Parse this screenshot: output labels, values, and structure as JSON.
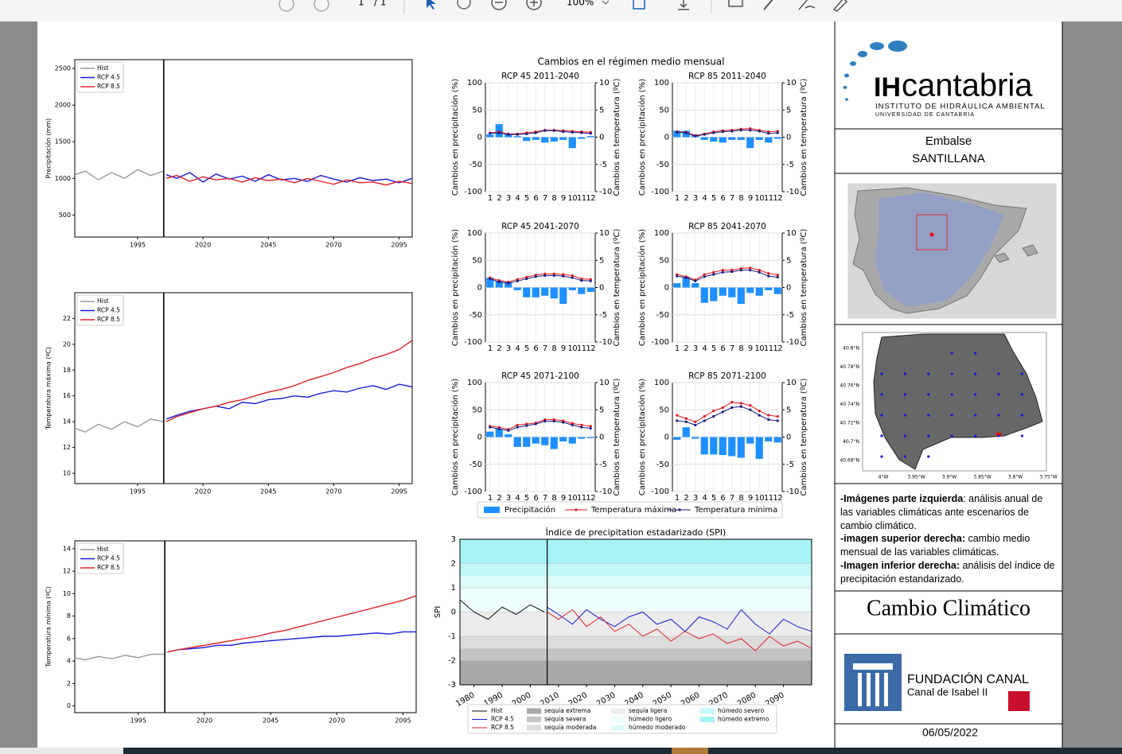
{
  "toolbar": {
    "page": "1",
    "pages": "/ 1",
    "zoom": "100%"
  },
  "sidebar": {
    "logo_main": "IH",
    "logo_name": "cantabria",
    "logo_sub1": "INSTITUTO DE HIDRÁULICA AMBIENTAL",
    "logo_sub2": "UNIVERSIDAD DE CANTABRIA",
    "reservoir_label": "Embalse",
    "reservoir_name": "SANTILLANA",
    "map_lat_labels": [
      "40.8°N",
      "40.78°N",
      "40.76°N",
      "40.74°N",
      "40.72°N",
      "40.7°N",
      "40.68°N"
    ],
    "map_lon_labels": [
      "4°W",
      "3.95°W",
      "3.9°W",
      "3.85°W",
      "3.8°W",
      "3.75°W"
    ],
    "description": [
      {
        "label": "-Imágenes parte izquierda",
        "text": ": análisis anual de las variables climáticas ante escenarios de cambio climático."
      },
      {
        "label": "-imagen superior derecha:",
        "text": " cambio medio mensual de las variables climáticas."
      },
      {
        "label": "-Imagen inferior derecha:",
        "text": " análisis del índice de precipitación estandarizado."
      }
    ],
    "heading": "Cambio Climático",
    "foundation": "FUNDACIÓN CANAL",
    "foundation_sub": "Canal de Isabel II",
    "date": "06/05/2022"
  },
  "chart_data": [
    {
      "type": "line",
      "ylabel": "Precipitación (mm)",
      "x": [
        1971,
        1975,
        1980,
        1985,
        1990,
        1995,
        2000,
        2005,
        2006,
        2010,
        2015,
        2020,
        2025,
        2030,
        2035,
        2040,
        2045,
        2050,
        2055,
        2060,
        2065,
        2070,
        2075,
        2080,
        2085,
        2090,
        2095,
        2100
      ],
      "xlim": [
        1971,
        2100
      ],
      "xticks": [
        1995,
        2020,
        2045,
        2070,
        2095
      ],
      "ylim": [
        200,
        2620
      ],
      "yticks": [
        500,
        1000,
        1500,
        2000,
        2500
      ],
      "vline": 2005,
      "series": [
        {
          "name": "Hist",
          "color": "#999999",
          "values": [
            1050,
            1100,
            980,
            1080,
            1000,
            1120,
            1040,
            1100,
            null,
            null,
            null,
            null,
            null,
            null,
            null,
            null,
            null,
            null,
            null,
            null,
            null,
            null,
            null,
            null,
            null,
            null,
            null,
            null
          ]
        },
        {
          "name": "RCP 4.5",
          "color": "#1a1ad6",
          "values": [
            null,
            null,
            null,
            null,
            null,
            null,
            null,
            null,
            1050,
            1000,
            1080,
            950,
            1060,
            990,
            1030,
            960,
            1050,
            980,
            1000,
            960,
            1040,
            990,
            950,
            1010,
            970,
            990,
            940,
            1000
          ]
        },
        {
          "name": "RCP 8.5",
          "color": "#e3202a",
          "values": [
            null,
            null,
            null,
            null,
            null,
            null,
            null,
            null,
            1000,
            1040,
            960,
            1020,
            980,
            1000,
            950,
            1010,
            970,
            990,
            940,
            1000,
            960,
            920,
            980,
            940,
            950,
            910,
            960,
            930
          ]
        }
      ]
    },
    {
      "type": "line",
      "ylabel": "Temperatura máxima (ºC)",
      "x": [
        1971,
        1975,
        1980,
        1985,
        1990,
        1995,
        2000,
        2005,
        2006,
        2010,
        2015,
        2020,
        2025,
        2030,
        2035,
        2040,
        2045,
        2050,
        2055,
        2060,
        2065,
        2070,
        2075,
        2080,
        2085,
        2090,
        2095,
        2100
      ],
      "xlim": [
        1971,
        2100
      ],
      "xticks": [
        1995,
        2020,
        2045,
        2070,
        2095
      ],
      "ylim": [
        9.2,
        24
      ],
      "yticks": [
        10,
        12,
        14,
        16,
        18,
        20,
        22
      ],
      "vline": 2005,
      "series": [
        {
          "name": "Hist",
          "color": "#999999",
          "values": [
            13.5,
            13.2,
            13.8,
            13.4,
            14.0,
            13.6,
            14.2,
            14.0,
            null,
            null,
            null,
            null,
            null,
            null,
            null,
            null,
            null,
            null,
            null,
            null,
            null,
            null,
            null,
            null,
            null,
            null,
            null,
            null
          ]
        },
        {
          "name": "RCP 4.5",
          "color": "#1a1ad6",
          "values": [
            null,
            null,
            null,
            null,
            null,
            null,
            null,
            null,
            14.2,
            14.5,
            14.8,
            15.0,
            15.2,
            15.0,
            15.5,
            15.4,
            15.7,
            15.8,
            16.0,
            15.9,
            16.2,
            16.4,
            16.3,
            16.6,
            16.8,
            16.5,
            16.9,
            16.7
          ]
        },
        {
          "name": "RCP 8.5",
          "color": "#e3202a",
          "values": [
            null,
            null,
            null,
            null,
            null,
            null,
            null,
            null,
            14.0,
            14.4,
            14.7,
            15.0,
            15.2,
            15.5,
            15.7,
            16.0,
            16.3,
            16.5,
            16.8,
            17.2,
            17.5,
            17.8,
            18.2,
            18.5,
            18.9,
            19.2,
            19.6,
            20.3
          ]
        }
      ]
    },
    {
      "type": "line",
      "ylabel": "Temperatura mínima (ºC)",
      "x": [
        1971,
        1975,
        1980,
        1985,
        1990,
        1995,
        2000,
        2005,
        2006,
        2010,
        2015,
        2020,
        2025,
        2030,
        2035,
        2040,
        2045,
        2050,
        2055,
        2060,
        2065,
        2070,
        2075,
        2080,
        2085,
        2090,
        2095,
        2100
      ],
      "xlim": [
        1971,
        2100
      ],
      "xticks": [
        1995,
        2020,
        2045,
        2070,
        2095
      ],
      "ylim": [
        -0.6,
        14.7
      ],
      "yticks": [
        0,
        2,
        4,
        6,
        8,
        10,
        12,
        14
      ],
      "vline": 2005,
      "series": [
        {
          "name": "Hist",
          "color": "#999999",
          "values": [
            4.3,
            4.1,
            4.4,
            4.2,
            4.5,
            4.3,
            4.6,
            4.6,
            null,
            null,
            null,
            null,
            null,
            null,
            null,
            null,
            null,
            null,
            null,
            null,
            null,
            null,
            null,
            null,
            null,
            null,
            null,
            null
          ]
        },
        {
          "name": "RCP 4.5",
          "color": "#1a1ad6",
          "values": [
            null,
            null,
            null,
            null,
            null,
            null,
            null,
            null,
            4.8,
            5.0,
            5.1,
            5.2,
            5.4,
            5.4,
            5.6,
            5.7,
            5.8,
            5.9,
            6.0,
            6.1,
            6.2,
            6.2,
            6.3,
            6.4,
            6.5,
            6.4,
            6.6,
            6.6
          ]
        },
        {
          "name": "RCP 8.5",
          "color": "#e3202a",
          "values": [
            null,
            null,
            null,
            null,
            null,
            null,
            null,
            null,
            4.8,
            5.0,
            5.2,
            5.4,
            5.6,
            5.8,
            6.0,
            6.2,
            6.5,
            6.7,
            7.0,
            7.3,
            7.6,
            7.9,
            8.2,
            8.5,
            8.8,
            9.1,
            9.4,
            9.8
          ]
        }
      ]
    },
    {
      "type": "monthly-panels",
      "title": "Cambios en el régimen medio mensual",
      "categories": [
        "1",
        "2",
        "3",
        "4",
        "5",
        "6",
        "7",
        "8",
        "9",
        "10",
        "11",
        "12"
      ],
      "ylim": [
        -100,
        100
      ],
      "yticks": [
        -100,
        -50,
        0,
        50,
        100
      ],
      "y2lim": [
        -10,
        10
      ],
      "y2ticks": [
        -10,
        -5,
        0,
        5,
        10
      ],
      "ylabel": "Cambios en precipitación (%)",
      "y2label": "Cambios en temperatura (ºC)",
      "legend": {
        "precip": "Precipitación",
        "tmax": "Temperatura máxima",
        "tmin": "Temperatura mínima"
      },
      "colors": {
        "precip": "#1e8fff",
        "tmax": "#e8141c",
        "tmin": "#1a1a80"
      },
      "panels": [
        {
          "title": "RCP 45 2011-2040",
          "precip": [
            5,
            24,
            5,
            2,
            -7,
            -5,
            -10,
            -8,
            -5,
            -20,
            -3,
            2
          ],
          "tmax": [
            0.8,
            1.0,
            0.6,
            0.6,
            0.8,
            1.0,
            1.3,
            1.3,
            1.2,
            1.1,
            1.0,
            0.9
          ],
          "tmin": [
            0.7,
            0.8,
            0.5,
            0.5,
            0.6,
            0.8,
            1.2,
            1.2,
            1.0,
            0.9,
            0.8,
            0.7
          ]
        },
        {
          "title": "RCP 85 2011-2040",
          "precip": [
            12,
            12,
            5,
            -5,
            -8,
            -10,
            -5,
            -5,
            -20,
            -5,
            -10,
            -3
          ],
          "tmax": [
            1.0,
            0.9,
            0.3,
            0.6,
            1.0,
            1.2,
            1.3,
            1.5,
            1.6,
            1.3,
            1.0,
            1.1
          ],
          "tmin": [
            0.9,
            0.8,
            0.2,
            0.5,
            0.8,
            1.0,
            1.1,
            1.3,
            1.3,
            1.1,
            0.7,
            0.8
          ]
        },
        {
          "title": "RCP 45 2041-2070",
          "precip": [
            18,
            12,
            10,
            -5,
            -18,
            -18,
            -15,
            -20,
            -30,
            -5,
            -12,
            -8
          ],
          "tmax": [
            1.8,
            1.3,
            1.0,
            1.5,
            1.9,
            2.3,
            2.5,
            2.5,
            2.4,
            2.2,
            1.6,
            1.5
          ],
          "tmin": [
            1.6,
            1.0,
            0.8,
            1.2,
            1.6,
            2.0,
            2.2,
            2.2,
            2.1,
            1.8,
            1.3,
            1.2
          ]
        },
        {
          "title": "RCP 85 2041-2070",
          "precip": [
            8,
            20,
            8,
            -28,
            -25,
            -15,
            -18,
            -30,
            -10,
            -15,
            -5,
            -12
          ],
          "tmax": [
            2.4,
            2.0,
            1.4,
            2.4,
            2.8,
            3.2,
            3.2,
            3.5,
            3.6,
            3.2,
            2.6,
            2.3
          ],
          "tmin": [
            2.1,
            1.8,
            1.2,
            2.0,
            2.4,
            2.8,
            2.9,
            3.2,
            3.2,
            2.8,
            2.1,
            1.9
          ]
        },
        {
          "title": "RCP 45 2071-2100",
          "precip": [
            10,
            15,
            5,
            -18,
            -18,
            -12,
            -15,
            -22,
            -8,
            -12,
            -3,
            -2
          ],
          "tmax": [
            2.0,
            1.8,
            1.4,
            2.2,
            2.4,
            2.6,
            3.2,
            3.2,
            3.0,
            2.5,
            2.2,
            2.0
          ],
          "tmin": [
            1.8,
            1.5,
            1.2,
            1.8,
            2.1,
            2.4,
            2.9,
            2.9,
            2.7,
            2.2,
            1.8,
            1.6
          ]
        },
        {
          "title": "RCP 85 2071-2100",
          "precip": [
            -5,
            18,
            -3,
            -32,
            -32,
            -33,
            -35,
            -38,
            -12,
            -40,
            -8,
            -10
          ],
          "tmax": [
            4.0,
            3.4,
            2.8,
            3.8,
            4.8,
            5.4,
            6.4,
            6.2,
            5.8,
            4.8,
            4.0,
            3.8
          ],
          "tmin": [
            3.0,
            2.8,
            2.2,
            3.0,
            3.8,
            4.6,
            5.4,
            5.6,
            5.0,
            4.0,
            3.2,
            3.0
          ]
        }
      ]
    },
    {
      "type": "spi",
      "title": "Índice de precipitation estadarizado (SPI)",
      "ylabel": "SPI",
      "x": [
        1975,
        1980,
        1985,
        1990,
        1995,
        2000,
        2005,
        2006,
        2010,
        2015,
        2020,
        2025,
        2030,
        2035,
        2040,
        2045,
        2050,
        2055,
        2060,
        2065,
        2070,
        2075,
        2080,
        2085,
        2090,
        2095,
        2100
      ],
      "xlim": [
        1975,
        2100
      ],
      "xticks": [
        1980,
        1990,
        2000,
        2010,
        2020,
        2030,
        2040,
        2050,
        2060,
        2070,
        2080,
        2090
      ],
      "ylim": [
        -3,
        3
      ],
      "yticks": [
        -3,
        -2,
        -1,
        0,
        1,
        2,
        3
      ],
      "vline": 2006,
      "zones": [
        {
          "name": "sequía extrema",
          "color": "#a8a8a8",
          "from": -3,
          "to": -2
        },
        {
          "name": "sequía severa",
          "color": "#c4c4c4",
          "from": -2,
          "to": -1.5
        },
        {
          "name": "sequía moderada",
          "color": "#dcdcdc",
          "from": -1.5,
          "to": -1
        },
        {
          "name": "sequía ligera",
          "color": "#ececec",
          "from": -1,
          "to": 0
        },
        {
          "name": "húmedo ligero",
          "color": "#eefdfd",
          "from": 0,
          "to": 1
        },
        {
          "name": "húmedo moderado",
          "color": "#dcfafa",
          "from": 1,
          "to": 1.5
        },
        {
          "name": "húmedo severo",
          "color": "#c4f7f7",
          "from": 1.5,
          "to": 2
        },
        {
          "name": "húmedo extremo",
          "color": "#a6f3f5",
          "from": 2,
          "to": 3
        }
      ],
      "series": [
        {
          "name": "Hist",
          "color": "#111111",
          "values": [
            0.5,
            0.0,
            -0.3,
            0.2,
            -0.1,
            0.3,
            0.0,
            null,
            null,
            null,
            null,
            null,
            null,
            null,
            null,
            null,
            null,
            null,
            null,
            null,
            null,
            null,
            null,
            null,
            null,
            null,
            null
          ]
        },
        {
          "name": "RCP 4.5",
          "color": "#1a1ad6",
          "values": [
            null,
            null,
            null,
            null,
            null,
            null,
            null,
            0.2,
            -0.1,
            -0.5,
            0.1,
            -0.3,
            -0.6,
            -0.2,
            0.0,
            -0.5,
            -0.3,
            -0.8,
            -0.2,
            -0.4,
            -0.7,
            0.1,
            -0.5,
            -0.9,
            -0.3,
            -0.6,
            -0.8
          ]
        },
        {
          "name": "RCP 8.5",
          "color": "#e3202a",
          "values": [
            null,
            null,
            null,
            null,
            null,
            null,
            null,
            0.0,
            -0.3,
            0.1,
            -0.6,
            -0.2,
            -0.8,
            -0.5,
            -1.0,
            -0.7,
            -1.2,
            -0.8,
            -1.1,
            -0.9,
            -1.3,
            -1.1,
            -1.6,
            -1.0,
            -1.4,
            -1.2,
            -1.5
          ]
        }
      ]
    }
  ]
}
